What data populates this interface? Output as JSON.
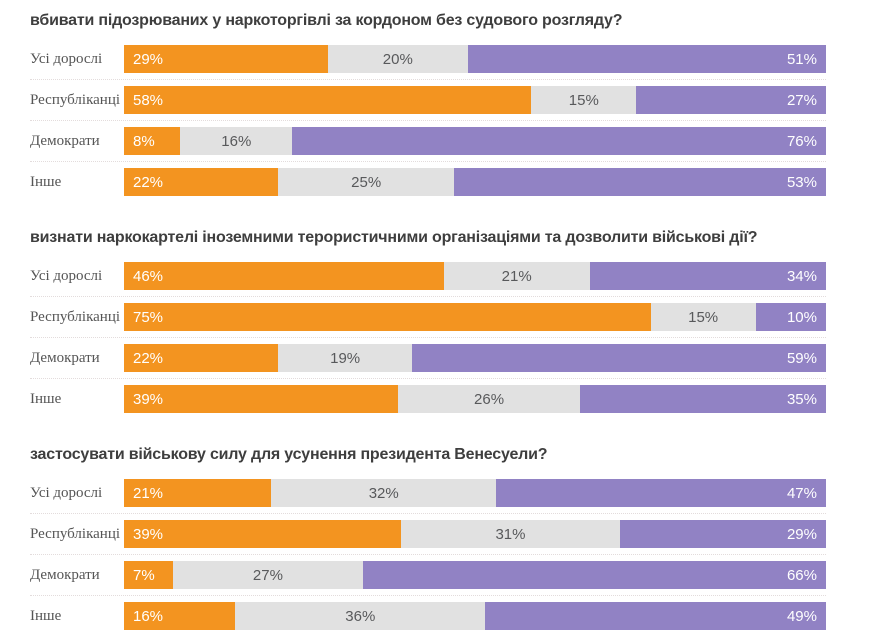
{
  "colors": {
    "segment_orange": "#F39420",
    "segment_gray": "#E1E1E1",
    "segment_purple": "#9182C4",
    "title_text": "#3E3E3E",
    "category_label_text": "#555555",
    "value_text_on_color": "#FFFFFF",
    "value_text_on_gray": "#58595B",
    "row_separator": "#E3DCDC",
    "background": "#FFFFFF"
  },
  "chart_data": [
    {
      "type": "bar",
      "orientation": "horizontal",
      "stacked": true,
      "xlim": [
        0,
        100
      ],
      "value_suffix": "%",
      "grid": false,
      "legend": "none",
      "title": "вбивати підозрюваних у наркоторгівлі за кордоном без судового розгляду?",
      "categories": [
        "Усі дорослі",
        "Республіканці",
        "Демократи",
        "Інше"
      ],
      "series": [
        {
          "name": "segment-orange",
          "color": "#F39420",
          "values": [
            29,
            58,
            8,
            22
          ],
          "labels": [
            "29%",
            "58%",
            "8%",
            "22%"
          ]
        },
        {
          "name": "segment-gray",
          "color": "#E1E1E1",
          "values": [
            20,
            15,
            16,
            25
          ],
          "labels": [
            "20%",
            "15%",
            "16%",
            "25%"
          ]
        },
        {
          "name": "segment-purple",
          "color": "#9182C4",
          "values": [
            51,
            27,
            76,
            53
          ],
          "labels": [
            "51%",
            "27%",
            "76%",
            "53%"
          ]
        }
      ]
    },
    {
      "type": "bar",
      "orientation": "horizontal",
      "stacked": true,
      "xlim": [
        0,
        100
      ],
      "value_suffix": "%",
      "grid": false,
      "legend": "none",
      "title": "визнати наркокартелі іноземними терористичними організаціями та дозволити військові дії?",
      "categories": [
        "Усі дорослі",
        "Республіканці",
        "Демократи",
        "Інше"
      ],
      "series": [
        {
          "name": "segment-orange",
          "color": "#F39420",
          "values": [
            46,
            75,
            22,
            39
          ],
          "labels": [
            "46%",
            "75%",
            "22%",
            "39%"
          ]
        },
        {
          "name": "segment-gray",
          "color": "#E1E1E1",
          "values": [
            21,
            15,
            19,
            26
          ],
          "labels": [
            "21%",
            "15%",
            "19%",
            "26%"
          ]
        },
        {
          "name": "segment-purple",
          "color": "#9182C4",
          "values": [
            34,
            10,
            59,
            35
          ],
          "labels": [
            "34%",
            "10%",
            "59%",
            "35%"
          ]
        }
      ]
    },
    {
      "type": "bar",
      "orientation": "horizontal",
      "stacked": true,
      "xlim": [
        0,
        100
      ],
      "value_suffix": "%",
      "grid": false,
      "legend": "none",
      "title": "застосувати військову силу для усунення президента Венесуели?",
      "categories": [
        "Усі дорослі",
        "Республіканці",
        "Демократи",
        "Інше"
      ],
      "series": [
        {
          "name": "segment-orange",
          "color": "#F39420",
          "values": [
            21,
            39,
            7,
            16
          ],
          "labels": [
            "21%",
            "39%",
            "7%",
            "16%"
          ]
        },
        {
          "name": "segment-gray",
          "color": "#E1E1E1",
          "values": [
            32,
            31,
            27,
            36
          ],
          "labels": [
            "32%",
            "31%",
            "27%",
            "36%"
          ]
        },
        {
          "name": "segment-purple",
          "color": "#9182C4",
          "values": [
            47,
            29,
            66,
            49
          ],
          "labels": [
            "47%",
            "29%",
            "66%",
            "49%"
          ]
        }
      ]
    }
  ]
}
